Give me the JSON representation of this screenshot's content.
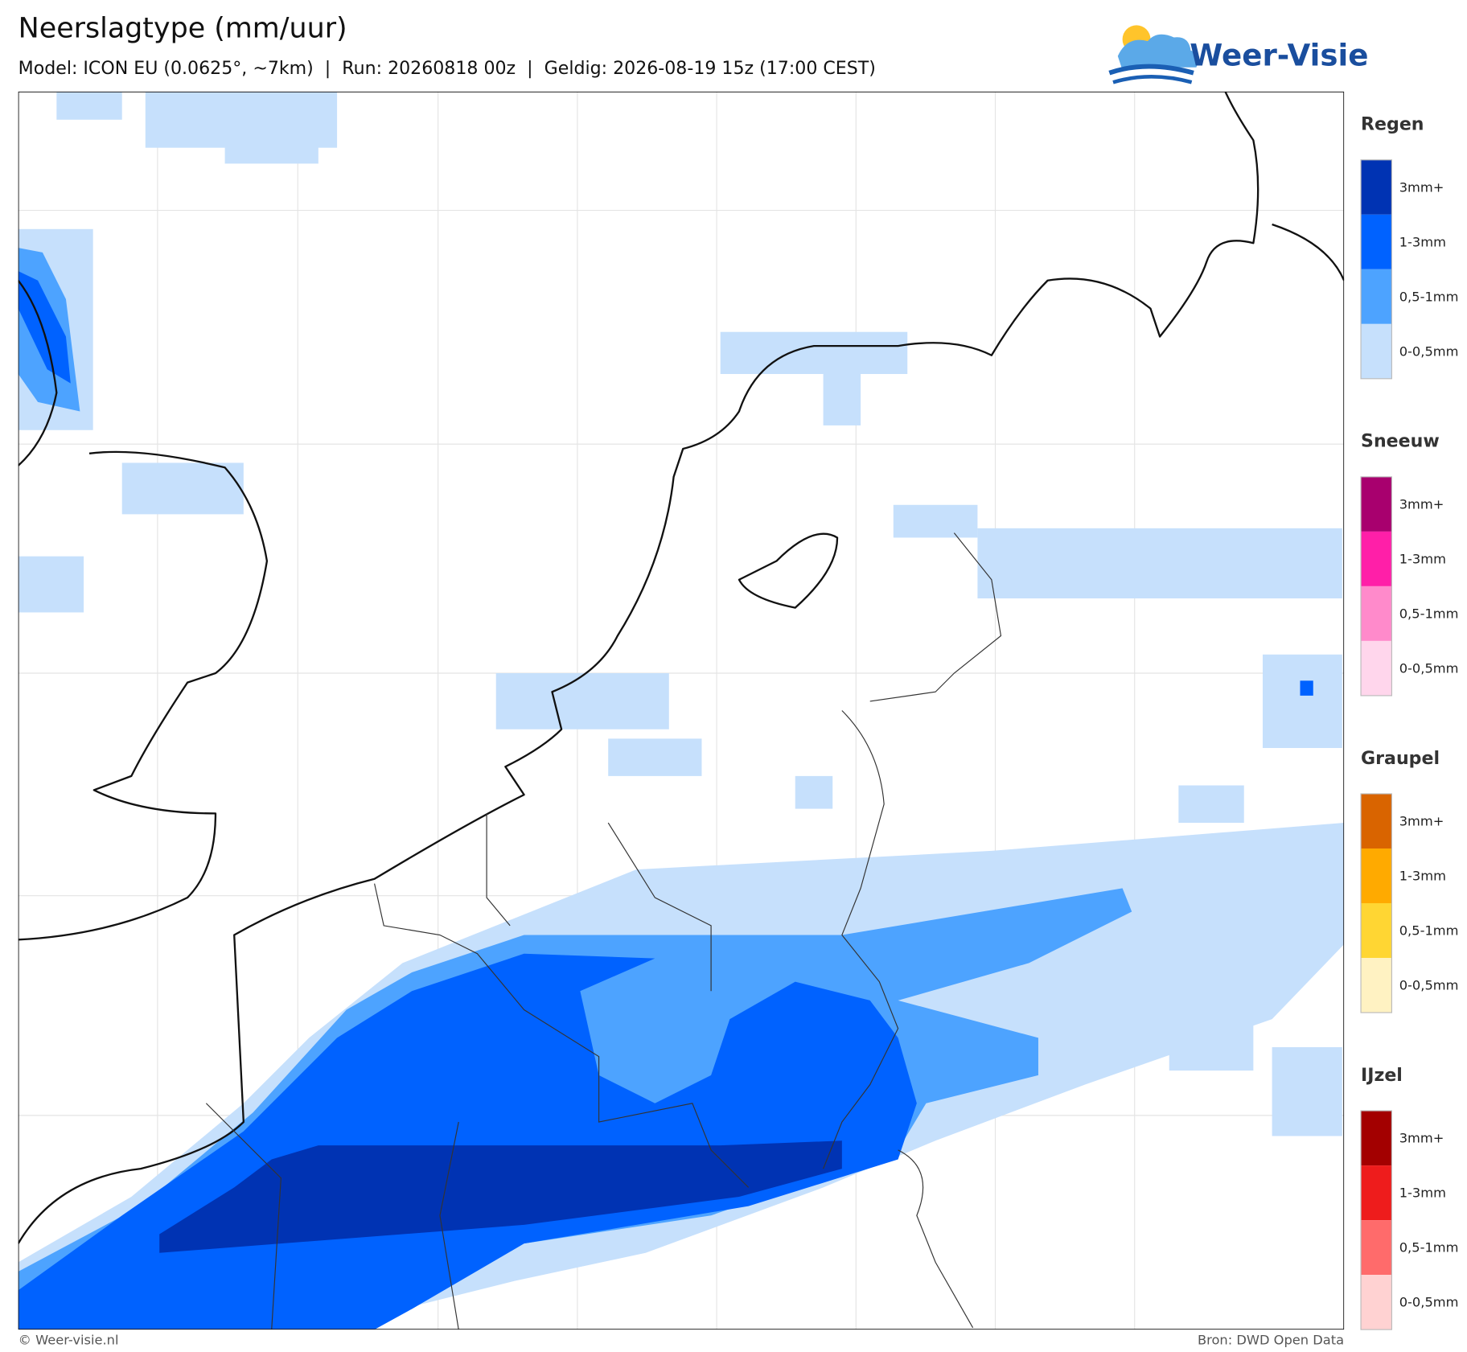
{
  "header": {
    "title": "Neerslagtype (mm/uur)",
    "subtitle": "Model: ICON EU (0.0625°, ~7km)  |  Run: 20260818 00z  |  Geldig: 2026-08-19 15z (17:00 CEST)",
    "logo": "Weer-Visie"
  },
  "legend": [
    {
      "title": "Regen",
      "items": [
        "3mm+",
        "1-3mm",
        "0,5-1mm",
        "0-0,5mm"
      ],
      "colors": [
        "#0033b3",
        "#0062ff",
        "#4da3ff",
        "#c6e0fc"
      ]
    },
    {
      "title": "Sneeuw",
      "items": [
        "3mm+",
        "1-3mm",
        "0,5-1mm",
        "0-0,5mm"
      ],
      "colors": [
        "#a8006e",
        "#ff1fa8",
        "#ff8acb",
        "#ffd6ec"
      ]
    },
    {
      "title": "Graupel",
      "items": [
        "3mm+",
        "1-3mm",
        "0,5-1mm",
        "0-0,5mm"
      ],
      "colors": [
        "#d96400",
        "#ffaa00",
        "#ffd633",
        "#fff2c2"
      ]
    },
    {
      "title": "IJzel",
      "items": [
        "3mm+",
        "1-3mm",
        "0,5-1mm",
        "0-0,5mm"
      ],
      "colors": [
        "#a30000",
        "#ee1c1c",
        "#ff6b6b",
        "#ffd2d2"
      ]
    }
  ],
  "footer": {
    "left": "© Weer-visie.nl",
    "right": "Bron: DWD Open Data"
  }
}
